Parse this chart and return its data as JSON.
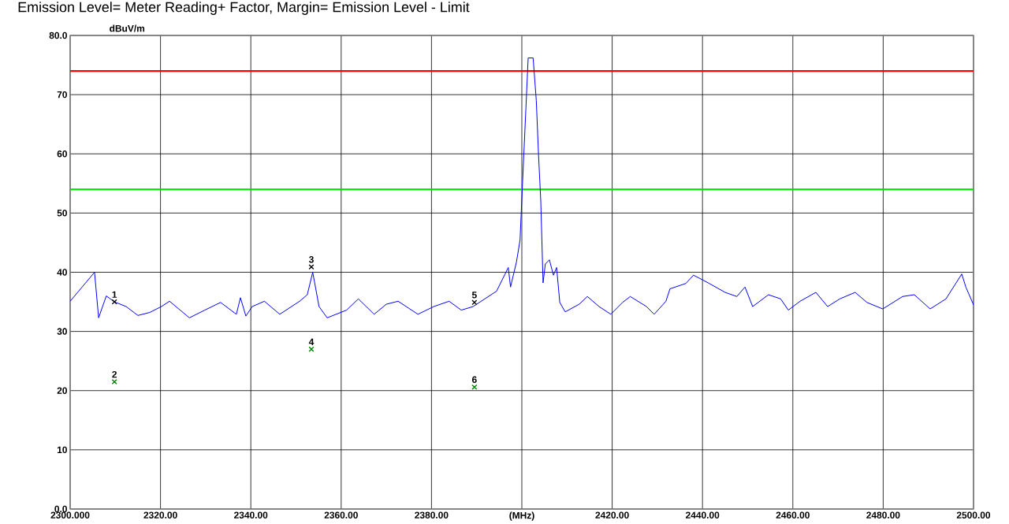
{
  "chart_data": {
    "type": "line",
    "title": "Emission Level= Meter Reading+ Factor, Margin= Emission Level - Limit",
    "ylabel": "dBuV/m",
    "xlim": [
      2300,
      2500
    ],
    "ylim": [
      0,
      80
    ],
    "xticks": [
      {
        "value": 2300,
        "label": "2300.000"
      },
      {
        "value": 2320,
        "label": "2320.00"
      },
      {
        "value": 2340,
        "label": "2340.00"
      },
      {
        "value": 2360,
        "label": "2360.00"
      },
      {
        "value": 2380,
        "label": "2380.00"
      },
      {
        "value": 2400,
        "label": "(MHz)"
      },
      {
        "value": 2420,
        "label": "2420.00"
      },
      {
        "value": 2440,
        "label": "2440.00"
      },
      {
        "value": 2460,
        "label": "2460.00"
      },
      {
        "value": 2480,
        "label": "2480.00"
      },
      {
        "value": 2500,
        "label": "2500.00"
      }
    ],
    "yticks": [
      {
        "value": 0,
        "label": "0.0"
      },
      10,
      20,
      30,
      40,
      50,
      60,
      70,
      {
        "value": 80,
        "label": "80.0"
      }
    ],
    "grid": true,
    "series": [
      {
        "color": "#0000ff",
        "marker": "none",
        "x": [
          2300,
          2305.4,
          2306.3,
          2308,
          2309.8,
          2312.4,
          2315,
          2317.6,
          2320.2,
          2322,
          2326.4,
          2329.8,
          2333.3,
          2336.8,
          2337.7,
          2338.9,
          2340.3,
          2343,
          2346.4,
          2350.8,
          2352.5,
          2353.7,
          2355.1,
          2356.9,
          2361.2,
          2363.8,
          2367.3,
          2370,
          2372.6,
          2377,
          2380.5,
          2383.9,
          2386.6,
          2389.2,
          2391.8,
          2394.4,
          2397,
          2397.5,
          2398.8,
          2399.6,
          2400.2,
          2400.9,
          2401.4,
          2402.5,
          2403.2,
          2403.7,
          2404.2,
          2404.7,
          2405.2,
          2406.1,
          2407,
          2407.7,
          2408.4,
          2409.6,
          2412.7,
          2414.5,
          2417.1,
          2419.7,
          2422.3,
          2424,
          2427.6,
          2429.3,
          2431.9,
          2432.8,
          2436.3,
          2438,
          2439.8,
          2441.5,
          2445,
          2447.6,
          2449.4,
          2451.1,
          2454.6,
          2457.3,
          2459,
          2461.6,
          2465.1,
          2467.7,
          2470.4,
          2473.8,
          2476.4,
          2479.9,
          2484.3,
          2486.9,
          2490.4,
          2493.9,
          2497.4,
          2498.3,
          2500
        ],
        "values": [
          35.1,
          40,
          32.3,
          36,
          35,
          34.2,
          32.7,
          33.2,
          34.2,
          35.1,
          32.3,
          33.6,
          34.9,
          32.9,
          35.7,
          32.6,
          34.2,
          35.1,
          32.9,
          35.1,
          36.2,
          40,
          34.2,
          32.3,
          33.6,
          35.5,
          32.9,
          34.6,
          35.1,
          32.9,
          34.2,
          35.1,
          33.6,
          34.2,
          35.5,
          36.8,
          40.8,
          37.5,
          41.7,
          45.4,
          55.9,
          67.7,
          76.2,
          76.2,
          69,
          59.8,
          51.9,
          38.2,
          41.4,
          42.1,
          39.5,
          40.8,
          34.9,
          33.3,
          34.6,
          35.9,
          34.2,
          32.9,
          34.9,
          35.9,
          34.2,
          32.9,
          35.1,
          37.2,
          38.1,
          39.5,
          38.8,
          38.1,
          36.6,
          35.9,
          37.5,
          34.2,
          36.2,
          35.5,
          33.6,
          35.1,
          36.6,
          34.2,
          35.5,
          36.6,
          34.9,
          33.8,
          35.9,
          36.2,
          33.8,
          35.5,
          39.7,
          37.5,
          34.5
        ]
      },
      {
        "type": "scatter",
        "color": "#000000",
        "marker": "cross",
        "x": [
          2309.8,
          2353.4,
          2389.5
        ],
        "values": [
          35,
          40.9,
          34.9
        ]
      },
      {
        "type": "scatter",
        "color": "#008000",
        "marker": "cross",
        "x": [
          2309.8,
          2353.4,
          2389.5
        ],
        "values": [
          21.5,
          27.0,
          20.6
        ]
      }
    ],
    "ref_lines": [
      {
        "axis": "y",
        "value": 74,
        "color": "#ff0000",
        "line_style": "solid"
      },
      {
        "axis": "y",
        "value": 54,
        "color": "#00e000",
        "line_style": "solid"
      }
    ],
    "annotations": [
      {
        "text": "1",
        "x": 2309.8,
        "y": 35
      },
      {
        "text": "2",
        "x": 2309.8,
        "y": 21.5
      },
      {
        "text": "3",
        "x": 2353.4,
        "y": 40.9
      },
      {
        "text": "4",
        "x": 2353.4,
        "y": 27.0
      },
      {
        "text": "5",
        "x": 2389.5,
        "y": 34.9
      },
      {
        "text": "6",
        "x": 2389.5,
        "y": 20.6
      }
    ]
  }
}
